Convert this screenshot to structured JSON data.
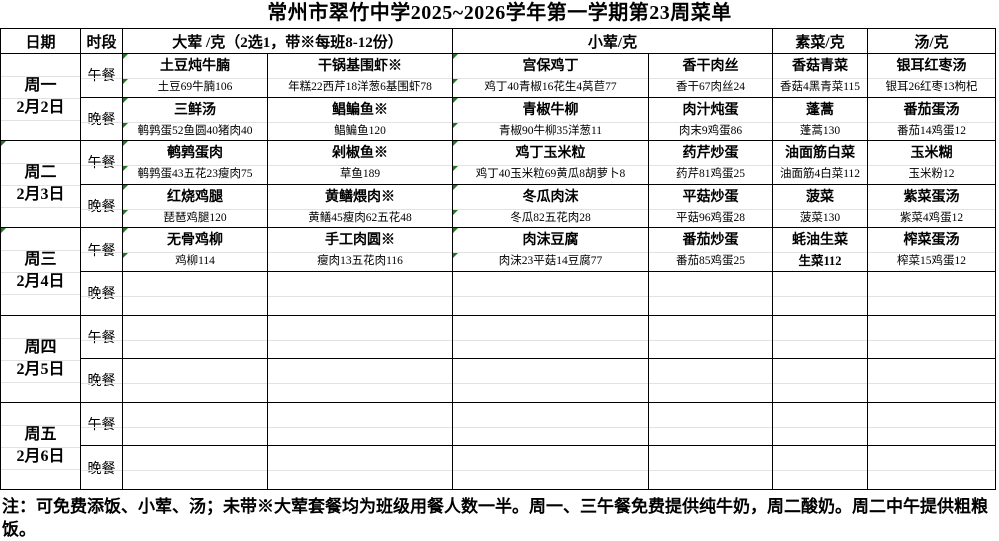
{
  "title": "常州市翠竹中学2025~2026学年第一学期第23周菜单",
  "header": {
    "date": "日期",
    "time": "时段",
    "da_hun": "大荤 /克（2选1，带※每班8-12份）",
    "xiao_hun": "小荤/克",
    "su_cai": "素菜/克",
    "tang": "汤/克"
  },
  "days": [
    {
      "day": "周一",
      "date": "2月2日",
      "marker": false,
      "rows": [
        {
          "meal": "午餐",
          "cells": [
            {
              "name": "土豆炖牛腩",
              "detail": "土豆69牛腩106"
            },
            {
              "name": "干锅基围虾※",
              "detail": "年糕22西芹18洋葱6基围虾78"
            },
            {
              "name": "宫保鸡丁",
              "detail": "鸡丁40青椒16花生4莴苣77"
            },
            {
              "name": "香干肉丝",
              "detail": "香干67肉丝24"
            },
            {
              "name": "香菇青菜",
              "detail": "香菇4黑青菜115"
            },
            {
              "name": "银耳红枣汤",
              "detail": "银耳26红枣13枸杞"
            }
          ]
        },
        {
          "meal": "晚餐",
          "cells": [
            {
              "name": "三鲜汤",
              "detail": "鹌鹑蛋52鱼圆40猪肉40"
            },
            {
              "name": "鲳鳊鱼※",
              "detail": "鲳鳊鱼120"
            },
            {
              "name": "青椒牛柳",
              "detail": "青椒90牛柳35洋葱11"
            },
            {
              "name": "肉汁炖蛋",
              "detail": "肉末9鸡蛋86"
            },
            {
              "name": "蓬蒿",
              "detail": "蓬蒿130"
            },
            {
              "name": "番茄蛋汤",
              "detail": "番茄14鸡蛋12"
            }
          ]
        }
      ]
    },
    {
      "day": "周二",
      "date": "2月3日",
      "marker": true,
      "rows": [
        {
          "meal": "午餐",
          "cells": [
            {
              "name": "鹌鹑蛋肉",
              "detail": "鹌鹑蛋43五花23瘦肉75"
            },
            {
              "name": "剁椒鱼※",
              "detail": "草鱼189"
            },
            {
              "name": "鸡丁玉米粒",
              "detail": "鸡丁40玉米粒69黄瓜8胡萝卜8"
            },
            {
              "name": "药芹炒蛋",
              "detail": "药芹81鸡蛋25"
            },
            {
              "name": "油面筋白菜",
              "detail": "油面筋4白菜112"
            },
            {
              "name": "玉米糊",
              "detail": "玉米粉12"
            }
          ]
        },
        {
          "meal": "晚餐",
          "cells": [
            {
              "name": "红烧鸡腿",
              "detail": "琵琶鸡腿120"
            },
            {
              "name": "黄鳝煨肉※",
              "detail": "黄鳝45瘦肉62五花48"
            },
            {
              "name": "冬瓜肉沫",
              "detail": "冬瓜82五花肉28"
            },
            {
              "name": "平菇炒蛋",
              "detail": "平菇96鸡蛋28"
            },
            {
              "name": "菠菜",
              "detail": "菠菜130"
            },
            {
              "name": "紫菜蛋汤",
              "detail": "紫菜4鸡蛋12"
            }
          ]
        }
      ]
    },
    {
      "day": "周三",
      "date": "2月4日",
      "marker": true,
      "rows": [
        {
          "meal": "午餐",
          "cells": [
            {
              "name": "无骨鸡柳",
              "detail": "鸡柳114"
            },
            {
              "name": "手工肉圆※",
              "detail": "瘦肉13五花肉116"
            },
            {
              "name": "肉沫豆腐",
              "detail": "肉沫23平菇14豆腐77"
            },
            {
              "name": "番茄炒蛋",
              "detail": "番茄85鸡蛋25"
            },
            {
              "name": "蚝油生菜",
              "detail": "生菜112",
              "bold_detail": true
            },
            {
              "name": "榨菜蛋汤",
              "detail": "榨菜15鸡蛋12"
            }
          ]
        },
        {
          "meal": "晚餐",
          "cells": [
            {
              "name": "",
              "detail": ""
            },
            {
              "name": "",
              "detail": ""
            },
            {
              "name": "",
              "detail": ""
            },
            {
              "name": "",
              "detail": ""
            },
            {
              "name": "",
              "detail": ""
            },
            {
              "name": "",
              "detail": ""
            }
          ]
        }
      ]
    },
    {
      "day": "周四",
      "date": "2月5日",
      "marker": false,
      "rows": [
        {
          "meal": "午餐",
          "cells": [
            {
              "name": "",
              "detail": ""
            },
            {
              "name": "",
              "detail": ""
            },
            {
              "name": "",
              "detail": ""
            },
            {
              "name": "",
              "detail": ""
            },
            {
              "name": "",
              "detail": ""
            },
            {
              "name": "",
              "detail": ""
            }
          ]
        },
        {
          "meal": "晚餐",
          "cells": [
            {
              "name": "",
              "detail": ""
            },
            {
              "name": "",
              "detail": ""
            },
            {
              "name": "",
              "detail": ""
            },
            {
              "name": "",
              "detail": ""
            },
            {
              "name": "",
              "detail": ""
            },
            {
              "name": "",
              "detail": ""
            }
          ]
        }
      ]
    },
    {
      "day": "周五",
      "date": "2月6日",
      "marker": false,
      "rows": [
        {
          "meal": "午餐",
          "cells": [
            {
              "name": "",
              "detail": ""
            },
            {
              "name": "",
              "detail": ""
            },
            {
              "name": "",
              "detail": ""
            },
            {
              "name": "",
              "detail": ""
            },
            {
              "name": "",
              "detail": ""
            },
            {
              "name": "",
              "detail": ""
            }
          ]
        },
        {
          "meal": "晚餐",
          "cells": [
            {
              "name": "",
              "detail": ""
            },
            {
              "name": "",
              "detail": ""
            },
            {
              "name": "",
              "detail": ""
            },
            {
              "name": "",
              "detail": ""
            },
            {
              "name": "",
              "detail": ""
            },
            {
              "name": "",
              "detail": ""
            }
          ]
        }
      ]
    }
  ],
  "note": {
    "line1": "注：可免费添饭、小荤、汤；未带※大荤套餐均为班级用餐人数一半。周一、三午餐免费提供纯牛奶，周二酸奶。周二中午提供粗粮",
    "line2": "饭。"
  },
  "colors": {
    "grid_border": "#000000",
    "faint_gridline": "#e2e2e2",
    "error_indicator_green": "#1e7b1e",
    "background": "#ffffff"
  }
}
